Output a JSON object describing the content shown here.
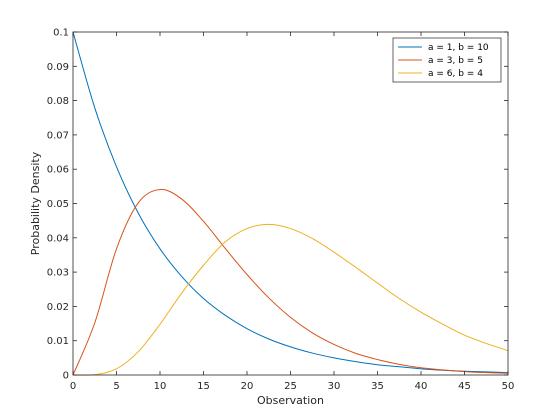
{
  "chart_data": {
    "type": "line",
    "title": "",
    "xlabel": "Observation",
    "ylabel": "Probability Density",
    "xlim": [
      0,
      50
    ],
    "ylim": [
      0,
      0.1
    ],
    "xticks": [
      0,
      5,
      10,
      15,
      20,
      25,
      30,
      35,
      40,
      45,
      50
    ],
    "xtick_labels": [
      "0",
      "5",
      "10",
      "15",
      "20",
      "25",
      "30",
      "35",
      "40",
      "45",
      "50"
    ],
    "yticks": [
      0,
      0.01,
      0.02,
      0.03,
      0.04,
      0.05,
      0.06,
      0.07,
      0.08,
      0.09,
      0.1
    ],
    "ytick_labels": [
      "0",
      "0.01",
      "0.02",
      "0.03",
      "0.04",
      "0.05",
      "0.06",
      "0.07",
      "0.08",
      "0.09",
      "0.1"
    ],
    "grid": false,
    "legend_position": "top-right",
    "x": [
      0,
      2.5,
      5,
      7.5,
      10,
      12.5,
      15,
      17.5,
      20,
      22.5,
      25,
      27.5,
      30,
      32.5,
      35,
      37.5,
      40,
      42.5,
      45,
      47.5,
      50
    ],
    "series": [
      {
        "name": "a = 1, b = 10",
        "color": "#0072BD",
        "values": [
          0.1,
          0.0779,
          0.0607,
          0.0472,
          0.0368,
          0.0287,
          0.0223,
          0.0174,
          0.0135,
          0.0105,
          0.0082,
          0.0064,
          0.005,
          0.0039,
          0.003,
          0.0024,
          0.0018,
          0.0014,
          0.0011,
          0.0009,
          0.0007
        ]
      },
      {
        "name": "a = 3, b = 5",
        "color": "#D95319",
        "values": [
          0,
          0.0152,
          0.0368,
          0.0502,
          0.0541,
          0.0513,
          0.0448,
          0.0369,
          0.0293,
          0.0225,
          0.0168,
          0.0123,
          0.0089,
          0.0063,
          0.0045,
          0.0031,
          0.0021,
          0.0015,
          0.001,
          0.0007,
          0.0005
        ]
      },
      {
        "name": "a = 6, b = 4",
        "color": "#EDB120",
        "values": [
          0,
          0.0001,
          0.0018,
          0.0068,
          0.0148,
          0.0239,
          0.032,
          0.0388,
          0.0427,
          0.0439,
          0.0427,
          0.0398,
          0.0358,
          0.0314,
          0.0268,
          0.0223,
          0.0183,
          0.0148,
          0.0116,
          0.0092,
          0.0071
        ]
      }
    ]
  }
}
